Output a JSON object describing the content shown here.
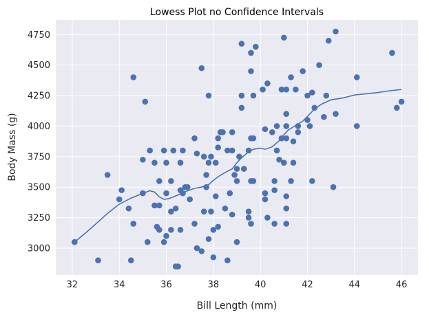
{
  "chart_data": {
    "type": "scatter",
    "title": "Lowess Plot no Confidence Intervals",
    "xlabel": "Bill Length (mm)",
    "ylabel": "Body Mass (g)",
    "xlim": [
      31.3,
      46.7
    ],
    "ylim": [
      2780,
      4870
    ],
    "xticks": [
      32,
      34,
      36,
      38,
      40,
      42,
      44,
      46
    ],
    "yticks": [
      3000,
      3250,
      3500,
      3750,
      4000,
      4250,
      4500,
      4750
    ],
    "grid": true,
    "colors": {
      "points": "#4c72b0",
      "line": "#4c72b0",
      "background": "#eaeaf2",
      "grid": "#ffffff"
    },
    "series": [
      {
        "name": "observations",
        "type": "scatter",
        "points": [
          [
            32.1,
            3050
          ],
          [
            33.1,
            2900
          ],
          [
            33.5,
            3600
          ],
          [
            34.0,
            3400
          ],
          [
            34.1,
            3475
          ],
          [
            34.4,
            3325
          ],
          [
            34.5,
            2900
          ],
          [
            34.6,
            3200
          ],
          [
            34.6,
            4400
          ],
          [
            35.0,
            3450
          ],
          [
            35.0,
            3725
          ],
          [
            35.1,
            4200
          ],
          [
            35.2,
            3050
          ],
          [
            35.3,
            3800
          ],
          [
            35.5,
            3350
          ],
          [
            35.5,
            3700
          ],
          [
            35.6,
            3175
          ],
          [
            35.7,
            3150
          ],
          [
            35.7,
            3350
          ],
          [
            35.7,
            3550
          ],
          [
            35.9,
            3800
          ],
          [
            35.9,
            3050
          ],
          [
            36.0,
            3100
          ],
          [
            36.0,
            3450
          ],
          [
            36.0,
            3700
          ],
          [
            36.2,
            3550
          ],
          [
            36.2,
            3300
          ],
          [
            36.2,
            3150
          ],
          [
            36.3,
            3800
          ],
          [
            36.4,
            3325
          ],
          [
            36.4,
            2850
          ],
          [
            36.5,
            2850
          ],
          [
            36.6,
            3150
          ],
          [
            36.6,
            3700
          ],
          [
            36.6,
            3475
          ],
          [
            36.7,
            3800
          ],
          [
            36.7,
            3450
          ],
          [
            36.8,
            3500
          ],
          [
            36.9,
            3500
          ],
          [
            37.0,
            3400
          ],
          [
            37.2,
            3900
          ],
          [
            37.2,
            3200
          ],
          [
            37.3,
            3000
          ],
          [
            37.3,
            3775
          ],
          [
            37.5,
            2975
          ],
          [
            37.5,
            4475
          ],
          [
            37.6,
            3750
          ],
          [
            37.6,
            3300
          ],
          [
            37.7,
            3600
          ],
          [
            37.7,
            3500
          ],
          [
            37.8,
            3075
          ],
          [
            37.8,
            3700
          ],
          [
            37.8,
            4250
          ],
          [
            37.9,
            3750
          ],
          [
            37.9,
            3300
          ],
          [
            38.0,
            2925
          ],
          [
            38.0,
            3150
          ],
          [
            38.1,
            3700
          ],
          [
            38.1,
            3425
          ],
          [
            38.2,
            3900
          ],
          [
            38.2,
            3175
          ],
          [
            38.2,
            3825
          ],
          [
            38.3,
            3950
          ],
          [
            38.4,
            3950
          ],
          [
            38.5,
            3325
          ],
          [
            38.6,
            3800
          ],
          [
            38.6,
            2900
          ],
          [
            38.7,
            3450
          ],
          [
            38.8,
            3950
          ],
          [
            38.8,
            3275
          ],
          [
            38.8,
            3800
          ],
          [
            38.9,
            3600
          ],
          [
            39.0,
            3650
          ],
          [
            39.0,
            3550
          ],
          [
            39.0,
            3050
          ],
          [
            39.1,
            3750
          ],
          [
            39.2,
            4675
          ],
          [
            39.2,
            4250
          ],
          [
            39.2,
            4150
          ],
          [
            39.3,
            3650
          ],
          [
            39.5,
            3300
          ],
          [
            39.5,
            3250
          ],
          [
            39.5,
            3800
          ],
          [
            39.6,
            4450
          ],
          [
            39.6,
            3550
          ],
          [
            39.6,
            3200
          ],
          [
            39.6,
            4600
          ],
          [
            39.6,
            3900
          ],
          [
            39.7,
            3550
          ],
          [
            39.7,
            4250
          ],
          [
            39.7,
            3900
          ],
          [
            39.8,
            4650
          ],
          [
            40.1,
            4300
          ],
          [
            40.2,
            3975
          ],
          [
            40.2,
            3450
          ],
          [
            40.2,
            3400
          ],
          [
            40.3,
            4350
          ],
          [
            40.3,
            3250
          ],
          [
            40.5,
            3950
          ],
          [
            40.6,
            3550
          ],
          [
            40.6,
            3475
          ],
          [
            40.6,
            3200
          ],
          [
            40.7,
            3800
          ],
          [
            40.7,
            4000
          ],
          [
            40.8,
            3725
          ],
          [
            40.9,
            3900
          ],
          [
            40.9,
            4300
          ],
          [
            41.0,
            3700
          ],
          [
            41.0,
            4725
          ],
          [
            41.1,
            3900
          ],
          [
            41.1,
            3425
          ],
          [
            41.1,
            3200
          ],
          [
            41.1,
            4000
          ],
          [
            41.1,
            4100
          ],
          [
            41.1,
            3325
          ],
          [
            41.1,
            4300
          ],
          [
            41.3,
            3550
          ],
          [
            41.3,
            4400
          ],
          [
            41.4,
            3875
          ],
          [
            41.4,
            3700
          ],
          [
            41.5,
            4300
          ],
          [
            41.6,
            4000
          ],
          [
            41.6,
            3950
          ],
          [
            41.8,
            4450
          ],
          [
            42.0,
            4050
          ],
          [
            42.0,
            4250
          ],
          [
            42.1,
            4000
          ],
          [
            42.2,
            4275
          ],
          [
            42.2,
            3550
          ],
          [
            42.3,
            4150
          ],
          [
            42.5,
            4500
          ],
          [
            42.7,
            4075
          ],
          [
            42.8,
            4250
          ],
          [
            42.9,
            4700
          ],
          [
            43.1,
            3500
          ],
          [
            43.2,
            4100
          ],
          [
            43.2,
            4775
          ],
          [
            44.1,
            4400
          ],
          [
            44.1,
            4000
          ],
          [
            45.6,
            4600
          ],
          [
            45.8,
            4150
          ],
          [
            46.0,
            4200
          ]
        ]
      },
      {
        "name": "lowess",
        "type": "line",
        "points": [
          [
            32.1,
            3050
          ],
          [
            32.6,
            3130
          ],
          [
            33.1,
            3215
          ],
          [
            33.5,
            3285
          ],
          [
            34.0,
            3360
          ],
          [
            34.5,
            3410
          ],
          [
            35.0,
            3450
          ],
          [
            35.3,
            3470
          ],
          [
            35.5,
            3460
          ],
          [
            35.7,
            3420
          ],
          [
            35.9,
            3400
          ],
          [
            36.1,
            3405
          ],
          [
            36.3,
            3420
          ],
          [
            36.6,
            3445
          ],
          [
            36.9,
            3470
          ],
          [
            37.2,
            3490
          ],
          [
            37.6,
            3505
          ],
          [
            37.8,
            3520
          ],
          [
            38.0,
            3555
          ],
          [
            38.2,
            3585
          ],
          [
            38.5,
            3620
          ],
          [
            38.8,
            3650
          ],
          [
            39.0,
            3700
          ],
          [
            39.2,
            3740
          ],
          [
            39.5,
            3790
          ],
          [
            39.7,
            3810
          ],
          [
            40.0,
            3820
          ],
          [
            40.2,
            3810
          ],
          [
            40.5,
            3830
          ],
          [
            40.8,
            3880
          ],
          [
            41.0,
            3930
          ],
          [
            41.2,
            3970
          ],
          [
            41.5,
            4005
          ],
          [
            41.8,
            4040
          ],
          [
            42.0,
            4080
          ],
          [
            42.3,
            4140
          ],
          [
            42.6,
            4180
          ],
          [
            43.0,
            4215
          ],
          [
            43.5,
            4230
          ],
          [
            44.0,
            4255
          ],
          [
            44.5,
            4265
          ],
          [
            45.0,
            4275
          ],
          [
            45.5,
            4290
          ],
          [
            46.0,
            4300
          ]
        ]
      }
    ]
  }
}
